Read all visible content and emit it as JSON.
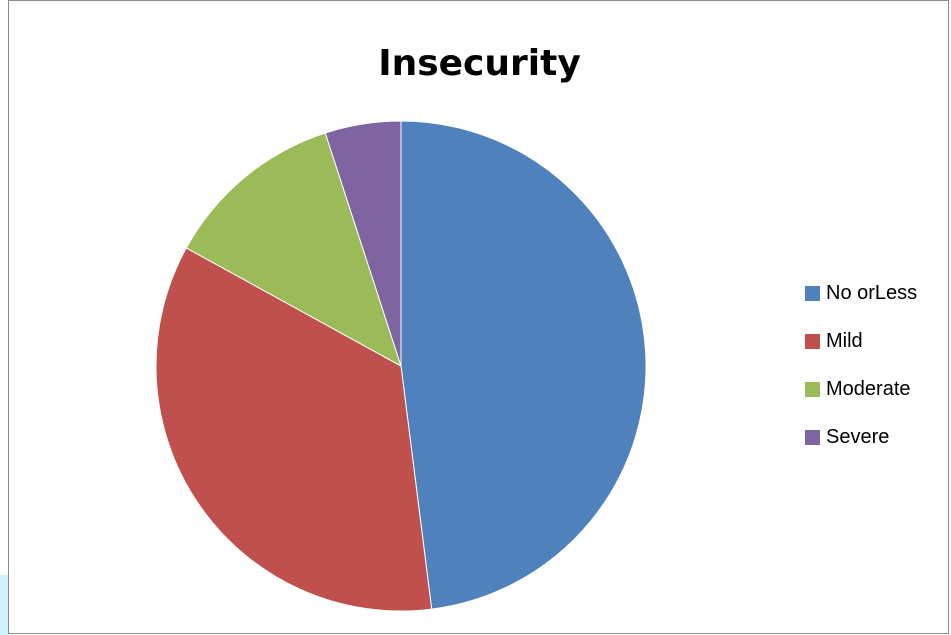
{
  "chart_data": {
    "type": "pie",
    "title": "Insecurity",
    "categories": [
      "No orLess",
      "Mild",
      "Moderate",
      "Severe"
    ],
    "values": [
      48,
      35,
      12,
      5
    ],
    "colors": [
      "#4f81bd",
      "#c0504d",
      "#9bbb59",
      "#8064a2"
    ],
    "start_angle_deg": 0,
    "direction": "clockwise",
    "legend_position": "right"
  },
  "colors": {
    "border": "#8c8c8c",
    "background": "#ffffff",
    "accent_strip": "#cff3fb",
    "slice_separator": "#ffffff"
  }
}
